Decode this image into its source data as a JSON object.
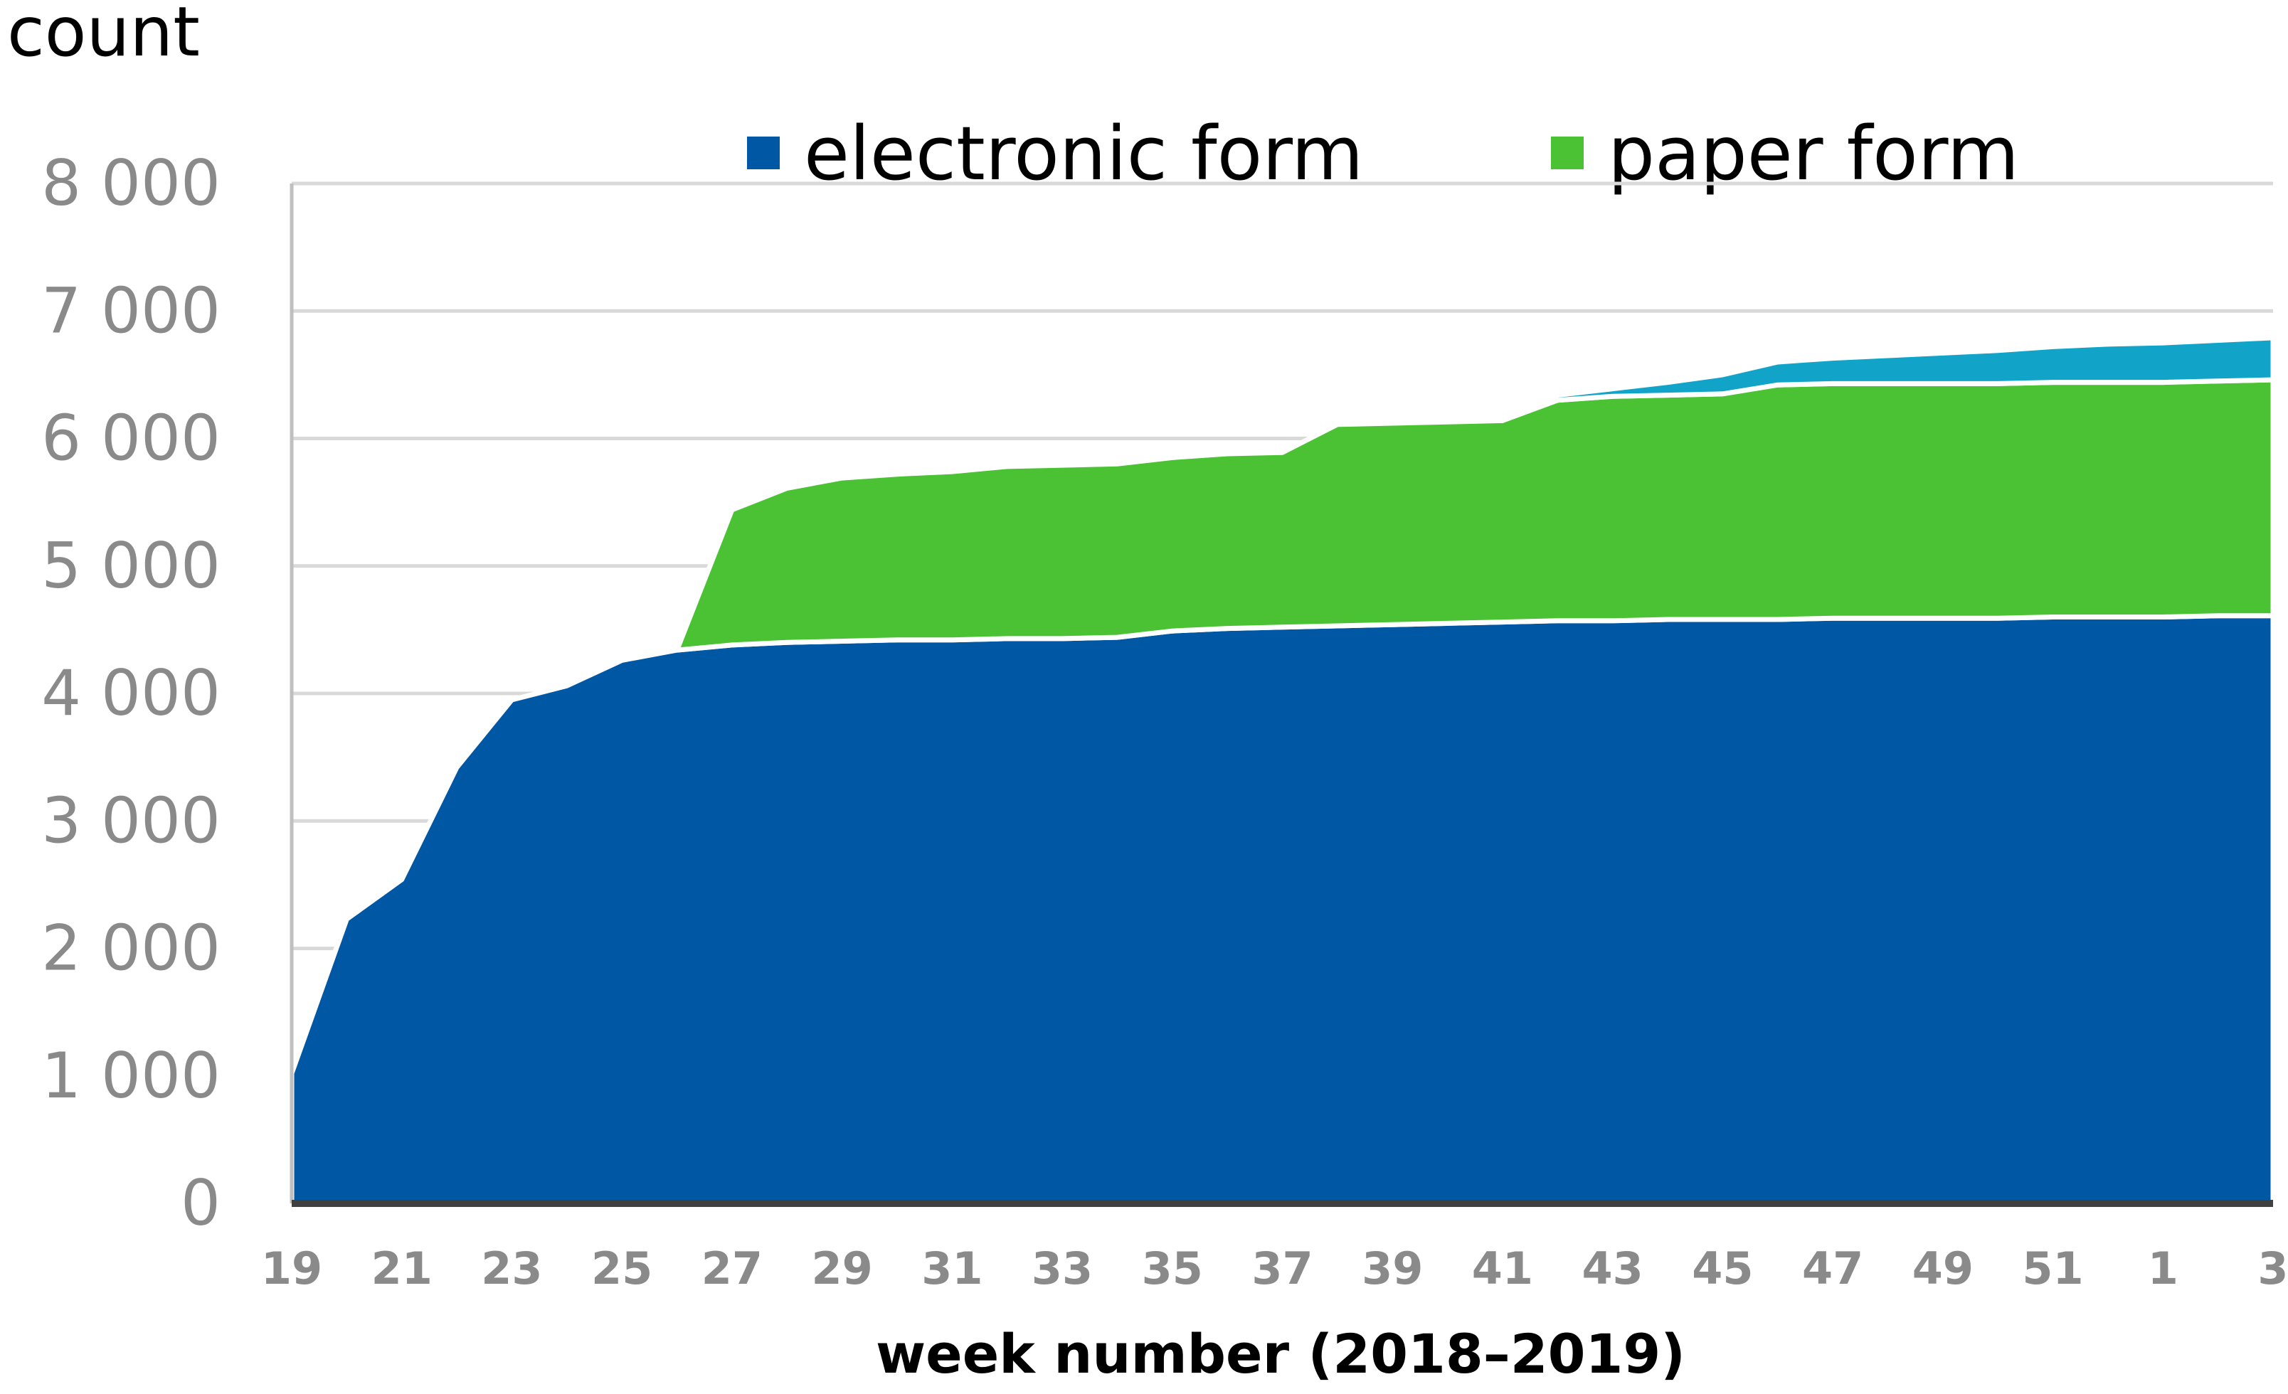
{
  "chart_data": {
    "type": "area",
    "stacked": true,
    "ylabel": "count",
    "xlabel": "week number (2018–2019)",
    "ylim": [
      0,
      8000
    ],
    "yticks": [
      "0",
      "1 000",
      "2 000",
      "3 000",
      "4 000",
      "5 000",
      "6 000",
      "7 000",
      "8 000"
    ],
    "ytick_values": [
      0,
      1000,
      2000,
      3000,
      4000,
      5000,
      6000,
      7000,
      8000
    ],
    "x": [
      19,
      20,
      21,
      22,
      23,
      24,
      25,
      26,
      27,
      28,
      29,
      30,
      31,
      32,
      33,
      34,
      35,
      36,
      37,
      38,
      39,
      40,
      41,
      42,
      43,
      44,
      45,
      46,
      47,
      48,
      49,
      50,
      51,
      52,
      1,
      2,
      3
    ],
    "xticks": [
      "19",
      "21",
      "23",
      "25",
      "27",
      "29",
      "31",
      "33",
      "35",
      "37",
      "39",
      "41",
      "43",
      "45",
      "47",
      "49",
      "51",
      "1",
      "3"
    ],
    "grid": true,
    "legend_position": "top",
    "series": [
      {
        "name": "electronic form",
        "color": "#0057a3",
        "values": [
          1020,
          2230,
          2540,
          3420,
          3950,
          4060,
          4260,
          4340,
          4380,
          4400,
          4410,
          4420,
          4420,
          4430,
          4430,
          4440,
          4490,
          4510,
          4520,
          4530,
          4540,
          4550,
          4560,
          4570,
          4570,
          4580,
          4580,
          4580,
          4590,
          4590,
          4590,
          4590,
          4600,
          4600,
          4600,
          4610,
          4610
        ]
      },
      {
        "name": "paper form",
        "color": "#4bc234",
        "values": [
          0,
          0,
          0,
          0,
          0,
          0,
          0,
          0,
          1060,
          1210,
          1280,
          1300,
          1320,
          1350,
          1360,
          1360,
          1360,
          1370,
          1370,
          1580,
          1580,
          1580,
          1580,
          1730,
          1760,
          1760,
          1770,
          1840,
          1840,
          1840,
          1840,
          1840,
          1840,
          1840,
          1840,
          1840,
          1850
        ]
      },
      {
        "color": "#12a3c8",
        "values": [
          0,
          0,
          0,
          0,
          0,
          0,
          0,
          0,
          0,
          0,
          0,
          0,
          0,
          0,
          0,
          0,
          0,
          0,
          0,
          0,
          0,
          0,
          0,
          40,
          60,
          100,
          150,
          180,
          200,
          220,
          240,
          260,
          280,
          300,
          310,
          320,
          330
        ]
      }
    ]
  }
}
